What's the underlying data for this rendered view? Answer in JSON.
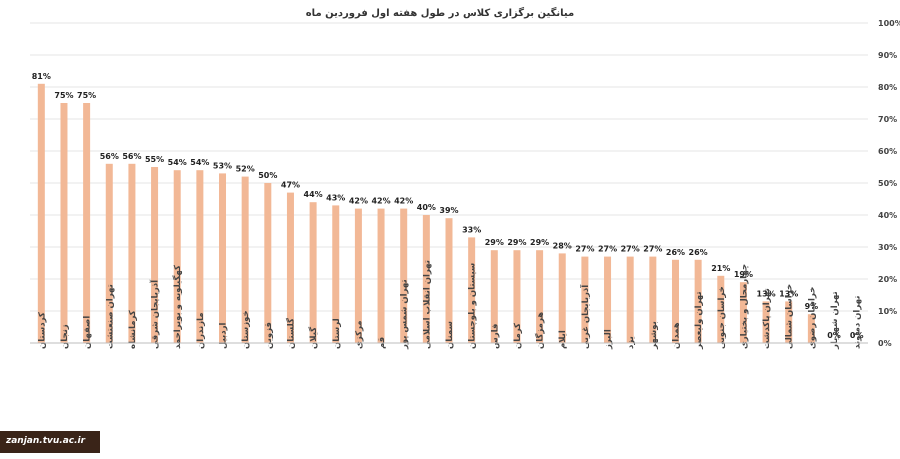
{
  "chart_data": {
    "type": "bar",
    "title": "میانگین برگزاری کلاس در طول هفته اول فروردین ماه",
    "xlabel": "",
    "ylabel": "",
    "ylim": [
      0,
      100
    ],
    "yticks": [
      "0%",
      "10%",
      "20%",
      "30%",
      "40%",
      "50%",
      "60%",
      "70%",
      "80%",
      "90%",
      "100%"
    ],
    "y_axis_side": "right",
    "grid": true,
    "legend": "none",
    "bar_color": "#f2b896",
    "categories": [
      "کردستان",
      "زنجان",
      "اصفهان",
      "تهران صنعتشت",
      "کرمانشاه",
      "آذربایجان شرقی",
      "کهگیلویه و بویراحمد",
      "مازندران",
      "اردبیل",
      "خوزستان",
      "قزوین",
      "گلستان",
      "گیلان",
      "لرستان",
      "مرکزی",
      "قم",
      "تهران شمس پور",
      "تهران انقلاب اسلامی",
      "سمنان",
      "سیستان و بلوچستان",
      "فارس",
      "کرمان",
      "هرمزگان",
      "ایلام",
      "آذربایجان غربی",
      "البرز",
      "یزد",
      "بوشهر",
      "همدان",
      "تهران ولیعصر",
      "خراسان جنوبی",
      "چهارمحال و بختیاری",
      "تهران پاکدشت",
      "خراسان شمالی",
      "خراسان رضوی",
      "تهران شهریار",
      "تهران دماوند"
    ],
    "values": [
      81,
      75,
      75,
      56,
      56,
      55,
      54,
      54,
      53,
      52,
      50,
      47,
      44,
      43,
      42,
      42,
      42,
      40,
      39,
      33,
      29,
      29,
      29,
      28,
      27,
      27,
      27,
      27,
      26,
      26,
      21,
      19,
      13,
      13,
      9,
      0,
      0
    ],
    "data_labels": [
      "81%",
      "75%",
      "75%",
      "56%",
      "56%",
      "55%",
      "54%",
      "54%",
      "53%",
      "52%",
      "50%",
      "47%",
      "44%",
      "43%",
      "42%",
      "42%",
      "42%",
      "40%",
      "39%",
      "33%",
      "29%",
      "29%",
      "29%",
      "28%",
      "27%",
      "27%",
      "27%",
      "27%",
      "26%",
      "26%",
      "21%",
      "19%",
      "13%",
      "13%",
      "9%",
      "0%",
      "0%"
    ]
  },
  "watermark": "zanjan.tvu.ac.ir"
}
